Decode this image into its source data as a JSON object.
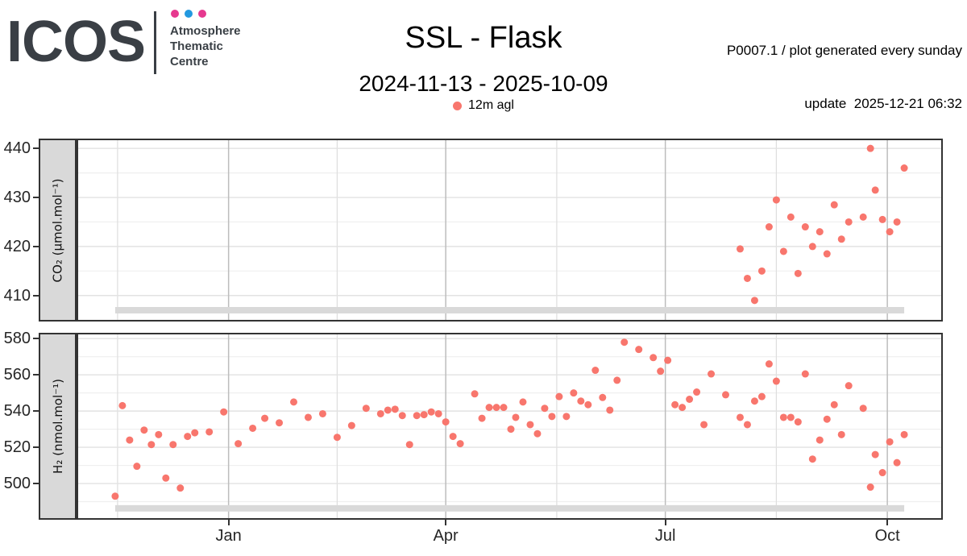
{
  "header": {
    "logo_text": "ICOS",
    "org_lines": [
      "Atmosphere",
      "Thematic",
      "Centre"
    ],
    "dot_colors": [
      "#e6398f",
      "#2299e0",
      "#e6398f"
    ],
    "title": "SSL - Flask",
    "subtitle": "2024-11-13 - 2025-10-09",
    "legend_label": "12m agl",
    "note_line1": "P0007.1 / plot generated every sunday",
    "note_line2": "update  2025-12-21 06:32",
    "point_color": "#f8766d"
  },
  "axes": {
    "x_domain": [
      "2024-10-30",
      "2025-10-24"
    ],
    "x_major": [
      {
        "date": "2025-01-01",
        "label": "Jan"
      },
      {
        "date": "2025-04-01",
        "label": "Apr"
      },
      {
        "date": "2025-07-01",
        "label": "Jul"
      },
      {
        "date": "2025-10-01",
        "label": "Oct"
      }
    ],
    "x_minor": [
      "2024-11-16",
      "2025-02-15",
      "2025-05-17",
      "2025-08-16"
    ]
  },
  "coverage": {
    "start": "2024-11-15",
    "end": "2025-10-08"
  },
  "chart_data": [
    {
      "type": "scatter",
      "panel": "co2",
      "title": "SSL - Flask",
      "ylabel": "CO₂ (µmol.mol⁻¹)",
      "ylim": [
        404.7,
        442.0
      ],
      "yticks": [
        410,
        420,
        430,
        440
      ],
      "yticks_minor": [
        405,
        415,
        425,
        435
      ],
      "coverage_value": 407,
      "legend_position": "top",
      "series": [
        {
          "name": "12m agl",
          "points": [
            [
              "2025-08-01",
              419.5
            ],
            [
              "2025-08-04",
              413.5
            ],
            [
              "2025-08-07",
              409
            ],
            [
              "2025-08-10",
              415
            ],
            [
              "2025-08-13",
              424
            ],
            [
              "2025-08-16",
              429.5
            ],
            [
              "2025-08-19",
              419
            ],
            [
              "2025-08-22",
              426
            ],
            [
              "2025-08-25",
              414.5
            ],
            [
              "2025-08-28",
              424
            ],
            [
              "2025-08-31",
              420
            ],
            [
              "2025-09-03",
              423
            ],
            [
              "2025-09-06",
              418.5
            ],
            [
              "2025-09-09",
              428.5
            ],
            [
              "2025-09-12",
              421.5
            ],
            [
              "2025-09-15",
              425
            ],
            [
              "2025-09-21",
              426
            ],
            [
              "2025-09-24",
              440
            ],
            [
              "2025-09-26",
              431.5
            ],
            [
              "2025-09-29",
              425.5
            ],
            [
              "2025-10-02",
              423
            ],
            [
              "2025-10-05",
              425
            ],
            [
              "2025-10-08",
              436
            ]
          ]
        }
      ]
    },
    {
      "type": "scatter",
      "panel": "h2",
      "title": "SSL - Flask",
      "ylabel": "H₂ (nmol.mol⁻¹)",
      "ylim": [
        480.0,
        583.2
      ],
      "yticks": [
        500,
        520,
        540,
        560,
        580
      ],
      "yticks_minor": [
        490,
        510,
        530,
        550,
        570
      ],
      "coverage_value": 486.3,
      "legend_position": "top",
      "series": [
        {
          "name": "12m agl",
          "points": [
            [
              "2024-11-15",
              493
            ],
            [
              "2024-11-18",
              543
            ],
            [
              "2024-11-21",
              524
            ],
            [
              "2024-11-24",
              509.5
            ],
            [
              "2024-11-27",
              529.5
            ],
            [
              "2024-11-30",
              521.5
            ],
            [
              "2024-12-03",
              527
            ],
            [
              "2024-12-06",
              503
            ],
            [
              "2024-12-09",
              521.5
            ],
            [
              "2024-12-12",
              497.5
            ],
            [
              "2024-12-15",
              526
            ],
            [
              "2024-12-18",
              528
            ],
            [
              "2024-12-24",
              528.5
            ],
            [
              "2024-12-30",
              539.5
            ],
            [
              "2025-01-05",
              522
            ],
            [
              "2025-01-11",
              530.5
            ],
            [
              "2025-01-16",
              536
            ],
            [
              "2025-01-22",
              533.5
            ],
            [
              "2025-01-28",
              545
            ],
            [
              "2025-02-03",
              536.5
            ],
            [
              "2025-02-09",
              538.5
            ],
            [
              "2025-02-15",
              525.5
            ],
            [
              "2025-02-21",
              532
            ],
            [
              "2025-02-27",
              541.5
            ],
            [
              "2025-03-05",
              538.5
            ],
            [
              "2025-03-08",
              540.5
            ],
            [
              "2025-03-11",
              541
            ],
            [
              "2025-03-14",
              537.5
            ],
            [
              "2025-03-17",
              521.5
            ],
            [
              "2025-03-20",
              537.5
            ],
            [
              "2025-03-23",
              538
            ],
            [
              "2025-03-26",
              539.5
            ],
            [
              "2025-03-29",
              538.5
            ],
            [
              "2025-04-01",
              534
            ],
            [
              "2025-04-04",
              526
            ],
            [
              "2025-04-07",
              522
            ],
            [
              "2025-04-13",
              549.5
            ],
            [
              "2025-04-16",
              536
            ],
            [
              "2025-04-19",
              542
            ],
            [
              "2025-04-22",
              542
            ],
            [
              "2025-04-25",
              542
            ],
            [
              "2025-04-28",
              530
            ],
            [
              "2025-04-30",
              536.5
            ],
            [
              "2025-05-03",
              545
            ],
            [
              "2025-05-06",
              532.5
            ],
            [
              "2025-05-09",
              527.5
            ],
            [
              "2025-05-12",
              541.5
            ],
            [
              "2025-05-15",
              537
            ],
            [
              "2025-05-18",
              548
            ],
            [
              "2025-05-21",
              537
            ],
            [
              "2025-05-24",
              550
            ],
            [
              "2025-05-27",
              545.5
            ],
            [
              "2025-05-30",
              543.5
            ],
            [
              "2025-06-02",
              562.5
            ],
            [
              "2025-06-05",
              547.5
            ],
            [
              "2025-06-08",
              540.5
            ],
            [
              "2025-06-11",
              557
            ],
            [
              "2025-06-14",
              578
            ],
            [
              "2025-06-20",
              574
            ],
            [
              "2025-06-26",
              569.5
            ],
            [
              "2025-06-29",
              562
            ],
            [
              "2025-07-02",
              568
            ],
            [
              "2025-07-05",
              543.5
            ],
            [
              "2025-07-08",
              542
            ],
            [
              "2025-07-11",
              546.5
            ],
            [
              "2025-07-14",
              550.5
            ],
            [
              "2025-07-17",
              532.5
            ],
            [
              "2025-07-20",
              560.5
            ],
            [
              "2025-07-26",
              549
            ],
            [
              "2025-08-01",
              536.5
            ],
            [
              "2025-08-04",
              532.5
            ],
            [
              "2025-08-07",
              545.5
            ],
            [
              "2025-08-10",
              548
            ],
            [
              "2025-08-13",
              566
            ],
            [
              "2025-08-16",
              556.5
            ],
            [
              "2025-08-19",
              536.5
            ],
            [
              "2025-08-22",
              536.5
            ],
            [
              "2025-08-25",
              534
            ],
            [
              "2025-08-28",
              560.5
            ],
            [
              "2025-08-31",
              513.5
            ],
            [
              "2025-09-03",
              524
            ],
            [
              "2025-09-06",
              535.5
            ],
            [
              "2025-09-09",
              543.5
            ],
            [
              "2025-09-12",
              527
            ],
            [
              "2025-09-15",
              554
            ],
            [
              "2025-09-21",
              541.5
            ],
            [
              "2025-09-24",
              498
            ],
            [
              "2025-09-26",
              516
            ],
            [
              "2025-09-29",
              506
            ],
            [
              "2025-10-02",
              523
            ],
            [
              "2025-10-05",
              511.5
            ],
            [
              "2025-10-08",
              527
            ]
          ]
        }
      ]
    }
  ]
}
